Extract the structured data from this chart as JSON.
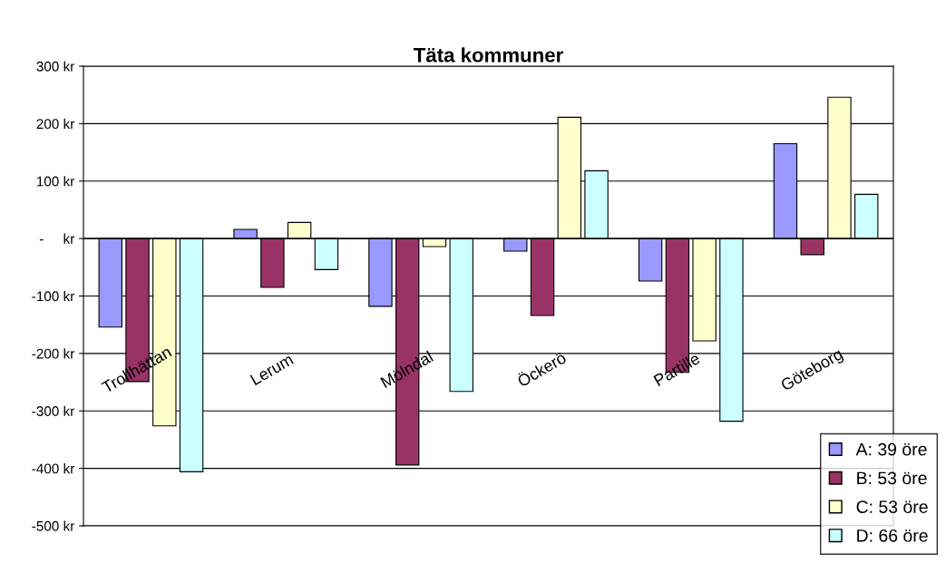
{
  "chart_data": {
    "type": "bar",
    "title": "Täta kommuner",
    "categories": [
      "Trollhättan",
      "Lerum",
      "Mölndal",
      "Öckerö",
      "Partille",
      "Göteborg"
    ],
    "series": [
      {
        "name": "A: 39 öre",
        "color": "#9999ff",
        "values": [
          -154,
          16,
          -118,
          -22,
          -74,
          165
        ]
      },
      {
        "name": "B: 53 öre",
        "color": "#993366",
        "values": [
          -249,
          -85,
          -394,
          -134,
          -233,
          -28
        ]
      },
      {
        "name": "C: 53 öre",
        "color": "#ffffcc",
        "values": [
          -326,
          28,
          -14,
          211,
          -178,
          246
        ]
      },
      {
        "name": "D: 66 öre",
        "color": "#ccffff",
        "values": [
          -406,
          -54,
          -266,
          118,
          -318,
          77
        ]
      }
    ],
    "ylim": [
      -500,
      300
    ],
    "yticks": [
      {
        "value": -500,
        "label": "-500 kr"
      },
      {
        "value": -400,
        "label": "-400 kr"
      },
      {
        "value": -300,
        "label": "-300 kr"
      },
      {
        "value": -200,
        "label": "-200 kr"
      },
      {
        "value": -100,
        "label": "-100 kr"
      },
      {
        "value": 0,
        "label": "-     kr"
      },
      {
        "value": 100,
        "label": "100 kr"
      },
      {
        "value": 200,
        "label": "200 kr"
      },
      {
        "value": 300,
        "label": "300 kr"
      }
    ],
    "grid": "y",
    "legend": "bottom right"
  }
}
